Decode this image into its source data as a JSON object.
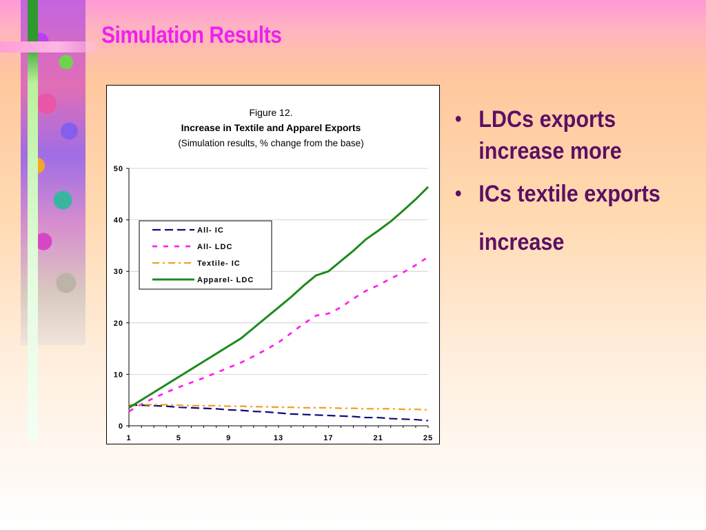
{
  "slide": {
    "title": "Simulation Results",
    "title_color": "#ee22ee",
    "bullet_color": "#5c0f64",
    "bullets": [
      "LDCs exports increase more",
      "ICs textile exports increase"
    ]
  },
  "chart_data": {
    "type": "line",
    "figure_label": "Figure 12.",
    "title": "Increase in Textile and Apparel Exports",
    "subtitle": "(Simulation results, % change from the base)",
    "xlabel": "",
    "ylabel": "",
    "x": [
      1,
      2,
      3,
      4,
      5,
      6,
      7,
      8,
      9,
      10,
      11,
      12,
      13,
      14,
      15,
      16,
      17,
      18,
      19,
      20,
      21,
      22,
      23,
      24,
      25
    ],
    "x_ticks": [
      "1",
      "5",
      "9",
      "13",
      "17",
      "21",
      "25"
    ],
    "y_ticks": [
      "0",
      "10",
      "20",
      "30",
      "40",
      "50"
    ],
    "ylim": [
      0,
      50
    ],
    "grid": "horizontal",
    "legend_position": "upper-left",
    "series": [
      {
        "name": "All- IC",
        "color": "#0a0a78",
        "dash": "long-dash",
        "values": [
          4.0,
          4.0,
          3.9,
          3.8,
          3.6,
          3.5,
          3.4,
          3.3,
          3.1,
          3.0,
          2.8,
          2.7,
          2.5,
          2.3,
          2.2,
          2.1,
          2.0,
          1.9,
          1.8,
          1.6,
          1.6,
          1.4,
          1.3,
          1.2,
          1.0
        ]
      },
      {
        "name": "All- LDC",
        "color": "#ff22ee",
        "dash": "short-dash",
        "values": [
          2.8,
          4.2,
          5.4,
          6.5,
          7.5,
          8.4,
          9.3,
          10.3,
          11.3,
          12.3,
          13.5,
          14.8,
          16.2,
          18.0,
          19.8,
          21.4,
          21.8,
          23.0,
          24.7,
          26.2,
          27.3,
          28.6,
          29.8,
          31.2,
          32.8
        ]
      },
      {
        "name": "Textile- IC",
        "color": "#f0a020",
        "dash": "dash-dot",
        "values": [
          4.1,
          4.1,
          4.1,
          4.1,
          4.0,
          3.9,
          3.9,
          3.9,
          3.8,
          3.8,
          3.7,
          3.7,
          3.6,
          3.6,
          3.5,
          3.5,
          3.5,
          3.4,
          3.4,
          3.3,
          3.3,
          3.3,
          3.2,
          3.2,
          3.1
        ]
      },
      {
        "name": "Apparel- LDC",
        "color": "#1e8a1e",
        "dash": "solid",
        "values": [
          3.5,
          5.0,
          6.5,
          8.0,
          9.5,
          11.0,
          12.5,
          14.0,
          15.5,
          17.0,
          19.0,
          21.0,
          23.0,
          25.0,
          27.2,
          29.2,
          30.0,
          32.0,
          34.0,
          36.2,
          37.9,
          39.7,
          41.8,
          44.0,
          46.4
        ]
      }
    ]
  }
}
